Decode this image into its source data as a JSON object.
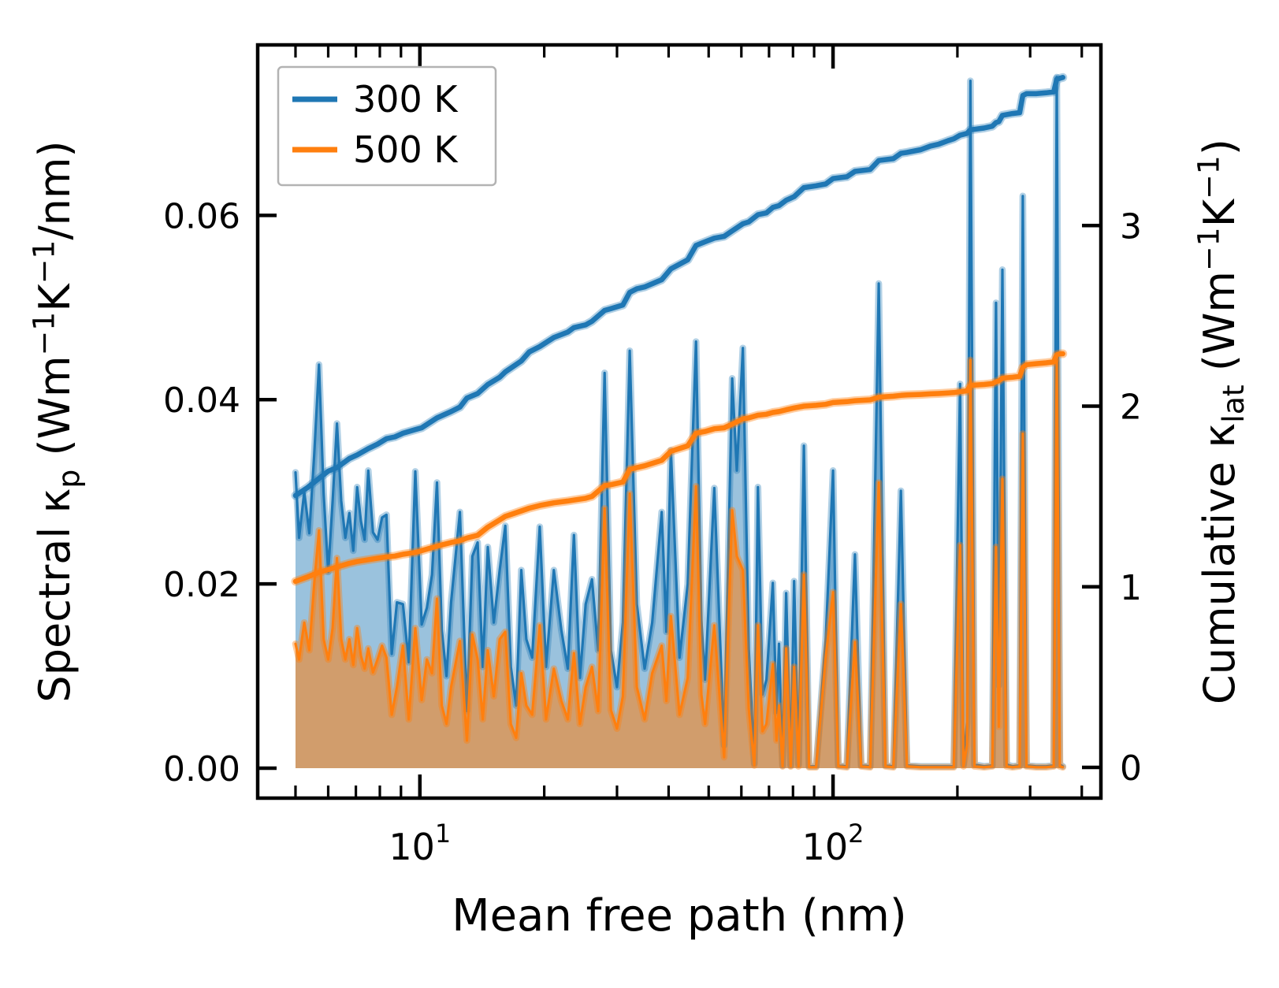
{
  "chart_data": {
    "type": "area+line",
    "title": "",
    "xlabel": "Mean free path (nm)",
    "ylabel_left": "Spectral κ_p (Wm⁻¹K⁻¹/nm)",
    "ylabel_right": "Cumulative κ_lat (Wm⁻¹K⁻¹)",
    "ylabel_left_segments": [
      [
        "Spectral κ",
        ""
      ],
      [
        "p",
        "sub"
      ],
      [
        " (Wm",
        ""
      ],
      [
        "−1",
        "sup"
      ],
      [
        "K",
        ""
      ],
      [
        "−1",
        "sup"
      ],
      [
        "/nm)",
        ""
      ]
    ],
    "ylabel_right_segments": [
      [
        "Cumulative κ",
        ""
      ],
      [
        "lat",
        "sub"
      ],
      [
        " (Wm",
        ""
      ],
      [
        "−1",
        "sup"
      ],
      [
        "K",
        ""
      ],
      [
        "−1",
        "sup"
      ],
      [
        ")",
        ""
      ]
    ],
    "x_scale": "log",
    "grid": false,
    "xlim": [
      4.05,
      445
    ],
    "ylim_left": [
      -0.00325,
      0.0785
    ],
    "ylim_right": [
      -0.17,
      4.0
    ],
    "x_ticks_major": [
      {
        "value": 10,
        "base": "10",
        "exp": "1"
      },
      {
        "value": 100,
        "base": "10",
        "exp": "2"
      }
    ],
    "x_ticks_minor": [
      5,
      6,
      7,
      8,
      9,
      20,
      30,
      40,
      50,
      60,
      70,
      80,
      90,
      200,
      300,
      400
    ],
    "y_ticks_left": [
      {
        "value": 0.0,
        "label": "0.00"
      },
      {
        "value": 0.02,
        "label": "0.02"
      },
      {
        "value": 0.04,
        "label": "0.04"
      },
      {
        "value": 0.06,
        "label": "0.06"
      }
    ],
    "y_ticks_right": [
      {
        "value": 0,
        "label": "0"
      },
      {
        "value": 1,
        "label": "1"
      },
      {
        "value": 2,
        "label": "2"
      },
      {
        "value": 3,
        "label": "3"
      }
    ],
    "legend": {
      "position": "upper left",
      "items": [
        {
          "label": "300 K",
          "color": "#1f77b4"
        },
        {
          "label": "500 K",
          "color": "#ff7f0e"
        }
      ]
    },
    "colors": {
      "blue": "#1f77b4",
      "orange": "#ff7f0e",
      "blue_fill": "rgba(31,119,180,0.45)",
      "orange_fill": "rgba(255,127,14,0.55)",
      "blue_halo": "rgba(31,119,180,0.35)",
      "orange_halo": "rgba(255,127,14,0.40)",
      "axes": "#000000",
      "legend_border": "#b3b3b3"
    },
    "spectral_points_mfp_b300_o500": [
      [
        5.0,
        0.0321,
        0.0135
      ],
      [
        5.1,
        0.025,
        0.0118
      ],
      [
        5.25,
        0.03,
        0.0158
      ],
      [
        5.4,
        0.0255,
        0.0128
      ],
      [
        5.55,
        0.034,
        0.02
      ],
      [
        5.7,
        0.0438,
        0.0258
      ],
      [
        5.85,
        0.0298,
        0.014
      ],
      [
        6.0,
        0.0213,
        0.0118
      ],
      [
        6.15,
        0.029,
        0.0152
      ],
      [
        6.3,
        0.0374,
        0.0228
      ],
      [
        6.45,
        0.029,
        0.014
      ],
      [
        6.6,
        0.025,
        0.0118
      ],
      [
        6.75,
        0.0277,
        0.014
      ],
      [
        6.9,
        0.0236,
        0.0112
      ],
      [
        7.05,
        0.0305,
        0.0152
      ],
      [
        7.2,
        0.0268,
        0.0122
      ],
      [
        7.35,
        0.0248,
        0.0108
      ],
      [
        7.5,
        0.0323,
        0.013
      ],
      [
        7.7,
        0.0256,
        0.0104
      ],
      [
        7.9,
        0.0248,
        0.0118
      ],
      [
        8.1,
        0.0272,
        0.0133
      ],
      [
        8.3,
        0.0275,
        0.012
      ],
      [
        8.55,
        0.0124,
        0.0058
      ],
      [
        8.8,
        0.018,
        0.0088
      ],
      [
        9.1,
        0.0178,
        0.0133
      ],
      [
        9.4,
        0.0115,
        0.0053
      ],
      [
        9.75,
        0.0322,
        0.0152
      ],
      [
        10.1,
        0.0156,
        0.0074
      ],
      [
        10.4,
        0.0174,
        0.0118
      ],
      [
        10.7,
        0.021,
        0.0103
      ],
      [
        11.0,
        0.031,
        0.0184
      ],
      [
        11.3,
        0.015,
        0.0068
      ],
      [
        11.6,
        0.01,
        0.0048
      ],
      [
        11.9,
        0.018,
        0.0088
      ],
      [
        12.5,
        0.0278,
        0.0138
      ],
      [
        13.0,
        0.0062,
        0.003
      ],
      [
        13.4,
        0.023,
        0.0145
      ],
      [
        13.8,
        0.0245,
        0.0118
      ],
      [
        14.2,
        0.011,
        0.0053
      ],
      [
        14.6,
        0.024,
        0.0128
      ],
      [
        15.1,
        0.0158,
        0.0078
      ],
      [
        15.6,
        0.0215,
        0.014
      ],
      [
        16.1,
        0.0263,
        0.0148
      ],
      [
        16.6,
        0.011,
        0.0048
      ],
      [
        17.1,
        0.0068,
        0.0033
      ],
      [
        17.6,
        0.0215,
        0.0103
      ],
      [
        18.1,
        0.014,
        0.0068
      ],
      [
        18.7,
        0.012,
        0.0058
      ],
      [
        19.5,
        0.0262,
        0.0155
      ],
      [
        20.2,
        0.011,
        0.0053
      ],
      [
        21.1,
        0.0215,
        0.0108
      ],
      [
        22.0,
        0.015,
        0.0073
      ],
      [
        22.8,
        0.0108,
        0.0053
      ],
      [
        23.6,
        0.0253,
        0.0125
      ],
      [
        24.4,
        0.0098,
        0.0048
      ],
      [
        25.2,
        0.0178,
        0.0088
      ],
      [
        26.1,
        0.0205,
        0.011
      ],
      [
        27.0,
        0.0128,
        0.0062
      ],
      [
        28.0,
        0.0429,
        0.0282
      ],
      [
        29.0,
        0.0128,
        0.0063
      ],
      [
        30.0,
        0.0088,
        0.0043
      ],
      [
        31.0,
        0.0158,
        0.0078
      ],
      [
        32.2,
        0.0453,
        0.0298
      ],
      [
        33.5,
        0.0178,
        0.0088
      ],
      [
        35.0,
        0.0108,
        0.0053
      ],
      [
        36.5,
        0.0158,
        0.0103
      ],
      [
        38.5,
        0.0278,
        0.0133
      ],
      [
        39.5,
        0.0148,
        0.0073
      ],
      [
        40.5,
        0.0345,
        0.0165
      ],
      [
        42.5,
        0.012,
        0.0058
      ],
      [
        44.5,
        0.02,
        0.0098
      ],
      [
        46.6,
        0.0463,
        0.0306
      ],
      [
        48.0,
        0.016,
        0.008
      ],
      [
        49.0,
        0.0096,
        0.0048
      ],
      [
        51.6,
        0.0304,
        0.0155
      ],
      [
        54.5,
        0.0025,
        0.0012
      ],
      [
        57.0,
        0.0423,
        0.028
      ],
      [
        58.5,
        0.0323,
        0.023
      ],
      [
        60.5,
        0.0456,
        0.0215
      ],
      [
        62.5,
        0.013,
        0.0065
      ],
      [
        64.5,
        0.0005,
        0.0003
      ],
      [
        65.8,
        0.0305,
        0.0155
      ],
      [
        67.5,
        0.008,
        0.004
      ],
      [
        69.0,
        0.0096,
        0.0048
      ],
      [
        71.5,
        0.0201,
        0.0113
      ],
      [
        73.0,
        0.006,
        0.003
      ],
      [
        74.0,
        0.0135,
        0.0068
      ],
      [
        75.5,
        0.0003,
        0.0002
      ],
      [
        77.0,
        0.019,
        0.013
      ],
      [
        79.0,
        0.0003,
        0.0002
      ],
      [
        80.5,
        0.0203,
        0.011
      ],
      [
        82.5,
        0.0004,
        0.0002
      ],
      [
        85.0,
        0.035,
        0.021
      ],
      [
        87.5,
        0.0002,
        0.0001
      ],
      [
        91.0,
        0.0002,
        0.0001
      ],
      [
        96.0,
        0.014,
        0.012
      ],
      [
        100.0,
        0.0323,
        0.0191
      ],
      [
        103.0,
        0.0003,
        0.0002
      ],
      [
        108.0,
        0.0002,
        0.0001
      ],
      [
        113.0,
        0.0232,
        0.0137
      ],
      [
        117.0,
        0.0003,
        0.0002
      ],
      [
        123.0,
        0.0002,
        0.0001
      ],
      [
        129.0,
        0.0526,
        0.031
      ],
      [
        134.0,
        0.0003,
        0.0002
      ],
      [
        140.0,
        0.0002,
        0.0001
      ],
      [
        146.0,
        0.0301,
        0.0178
      ],
      [
        151.0,
        0.0003,
        0.0002
      ],
      [
        163.0,
        0.0002,
        0.0001
      ],
      [
        180.0,
        0.0002,
        0.0001
      ],
      [
        196.0,
        0.0002,
        0.0001
      ],
      [
        203.0,
        0.0417,
        0.0242
      ],
      [
        207.0,
        0.0004,
        0.0002
      ],
      [
        211.0,
        0.005,
        0.0025
      ],
      [
        215.0,
        0.0746,
        0.0443
      ],
      [
        220.0,
        0.0004,
        0.0002
      ],
      [
        232.0,
        0.0002,
        0.0001
      ],
      [
        243.0,
        0.0003,
        0.0002
      ],
      [
        248.0,
        0.0505,
        0.024
      ],
      [
        252.0,
        0.009,
        0.0045
      ],
      [
        257.0,
        0.0541,
        0.0314
      ],
      [
        263.0,
        0.0004,
        0.0002
      ],
      [
        272.0,
        0.0002,
        0.0001
      ],
      [
        283.0,
        0.0003,
        0.0002
      ],
      [
        288.0,
        0.0621,
        0.0363
      ],
      [
        294.0,
        0.0003,
        0.0002
      ],
      [
        310.0,
        0.0002,
        0.0001
      ],
      [
        328.0,
        0.0002,
        0.0001
      ],
      [
        342.0,
        0.0003,
        0.0002
      ],
      [
        348.0,
        0.075,
        0.0442
      ],
      [
        354.0,
        0.0004,
        0.0002
      ],
      [
        360.0,
        0.0002,
        0.0001
      ]
    ],
    "cumulative_points_mfp_b300_o500": [
      [
        5.0,
        1.505,
        1.03
      ],
      [
        5.35,
        1.55,
        1.055
      ],
      [
        5.7,
        1.6,
        1.08
      ],
      [
        6.0,
        1.64,
        1.095
      ],
      [
        6.3,
        1.66,
        1.11
      ],
      [
        6.75,
        1.71,
        1.13
      ],
      [
        7.05,
        1.73,
        1.14
      ],
      [
        7.5,
        1.765,
        1.15
      ],
      [
        7.9,
        1.79,
        1.158
      ],
      [
        8.3,
        1.82,
        1.165
      ],
      [
        8.7,
        1.83,
        1.17
      ],
      [
        9.1,
        1.85,
        1.18
      ],
      [
        9.75,
        1.87,
        1.19
      ],
      [
        10.1,
        1.88,
        1.2
      ],
      [
        11.0,
        1.935,
        1.225
      ],
      [
        11.9,
        1.97,
        1.245
      ],
      [
        12.5,
        1.995,
        1.255
      ],
      [
        13.0,
        2.045,
        1.27
      ],
      [
        13.8,
        2.07,
        1.285
      ],
      [
        14.6,
        2.12,
        1.33
      ],
      [
        15.6,
        2.16,
        1.37
      ],
      [
        16.1,
        2.19,
        1.39
      ],
      [
        17.6,
        2.25,
        1.42
      ],
      [
        18.4,
        2.3,
        1.435
      ],
      [
        19.5,
        2.33,
        1.45
      ],
      [
        21.1,
        2.38,
        1.465
      ],
      [
        22.8,
        2.41,
        1.475
      ],
      [
        23.6,
        2.435,
        1.48
      ],
      [
        25.2,
        2.45,
        1.49
      ],
      [
        26.1,
        2.47,
        1.5
      ],
      [
        28.0,
        2.53,
        1.56
      ],
      [
        29.0,
        2.54,
        1.565
      ],
      [
        31.0,
        2.56,
        1.58
      ],
      [
        32.2,
        2.63,
        1.65
      ],
      [
        33.5,
        2.65,
        1.66
      ],
      [
        35.0,
        2.66,
        1.67
      ],
      [
        38.5,
        2.7,
        1.7
      ],
      [
        40.5,
        2.76,
        1.75
      ],
      [
        44.5,
        2.81,
        1.78
      ],
      [
        46.6,
        2.89,
        1.85
      ],
      [
        49.0,
        2.91,
        1.86
      ],
      [
        51.6,
        2.93,
        1.875
      ],
      [
        54.5,
        2.94,
        1.88
      ],
      [
        57.0,
        2.97,
        1.9
      ],
      [
        60.5,
        3.01,
        1.93
      ],
      [
        62.5,
        3.02,
        1.935
      ],
      [
        65.8,
        3.06,
        1.95
      ],
      [
        69.0,
        3.07,
        1.955
      ],
      [
        71.5,
        3.1,
        1.965
      ],
      [
        74.0,
        3.11,
        1.97
      ],
      [
        77.0,
        3.14,
        1.98
      ],
      [
        80.5,
        3.16,
        1.99
      ],
      [
        85.0,
        3.21,
        2.0
      ],
      [
        91.0,
        3.22,
        2.005
      ],
      [
        96.0,
        3.23,
        2.01
      ],
      [
        100.0,
        3.26,
        2.02
      ],
      [
        108.0,
        3.27,
        2.025
      ],
      [
        113.0,
        3.3,
        2.03
      ],
      [
        123.0,
        3.31,
        2.035
      ],
      [
        129.0,
        3.36,
        2.05
      ],
      [
        140.0,
        3.37,
        2.055
      ],
      [
        146.0,
        3.4,
        2.06
      ],
      [
        151.0,
        3.405,
        2.062
      ],
      [
        163.0,
        3.42,
        2.065
      ],
      [
        172.0,
        3.44,
        2.068
      ],
      [
        180.0,
        3.45,
        2.07
      ],
      [
        190.0,
        3.47,
        2.073
      ],
      [
        196.0,
        3.48,
        2.075
      ],
      [
        203.0,
        3.5,
        2.08
      ],
      [
        211.0,
        3.51,
        2.085
      ],
      [
        215.0,
        3.53,
        2.115
      ],
      [
        232.0,
        3.54,
        2.12
      ],
      [
        243.0,
        3.55,
        2.125
      ],
      [
        248.0,
        3.57,
        2.135
      ],
      [
        252.0,
        3.575,
        2.14
      ],
      [
        257.0,
        3.61,
        2.155
      ],
      [
        272.0,
        3.62,
        2.16
      ],
      [
        283.0,
        3.625,
        2.165
      ],
      [
        288.0,
        3.72,
        2.215
      ],
      [
        294.0,
        3.73,
        2.23
      ],
      [
        310.0,
        3.73,
        2.235
      ],
      [
        328.0,
        3.735,
        2.24
      ],
      [
        342.0,
        3.74,
        2.245
      ],
      [
        348.0,
        3.81,
        2.285
      ],
      [
        354.0,
        3.815,
        2.29
      ],
      [
        360.0,
        3.82,
        2.29
      ]
    ]
  }
}
